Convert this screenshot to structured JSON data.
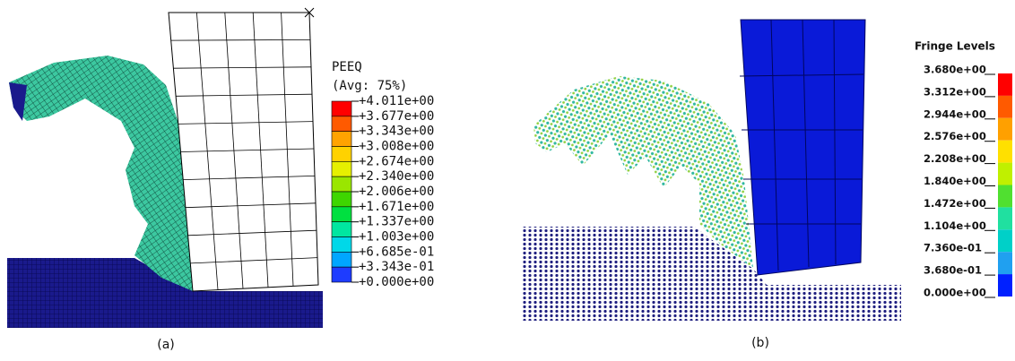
{
  "panels": [
    {
      "legend_title": "PEEQ",
      "legend_subtitle": "(Avg: 75%)",
      "levels": [
        "+4.011e+00",
        "+3.677e+00",
        "+3.343e+00",
        "+3.008e+00",
        "+2.674e+00",
        "+2.340e+00",
        "+2.006e+00",
        "+1.671e+00",
        "+1.337e+00",
        "+1.003e+00",
        "+6.685e-01",
        "+3.343e-01",
        "+0.000e+00"
      ],
      "colors": [
        "#ff0000",
        "#ff5a00",
        "#ffa300",
        "#ffd200",
        "#e6f000",
        "#9ae600",
        "#3ed600",
        "#00e040",
        "#00e6a0",
        "#00d8e8",
        "#00a6ff",
        "#1e3cff"
      ],
      "caption": "(a)"
    },
    {
      "legend_title": "Fringe Levels",
      "levels": [
        "3.680e+00",
        "3.312e+00",
        "2.944e+00",
        "2.576e+00",
        "2.208e+00",
        "1.840e+00",
        "1.472e+00",
        "1.104e+00",
        "7.360e-01",
        "3.680e-01",
        "0.000e+00"
      ],
      "colors": [
        "#ff0000",
        "#ff5a00",
        "#ffa000",
        "#ffe000",
        "#c0f000",
        "#50e030",
        "#20e0a0",
        "#00d0c8",
        "#20a0f0",
        "#0020ff"
      ],
      "caption": "(b)"
    }
  ]
}
